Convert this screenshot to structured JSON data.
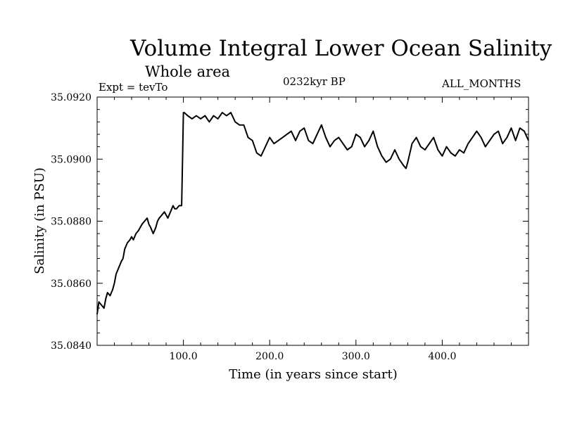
{
  "header": {
    "title": "Volume Integral Lower Ocean Salinity",
    "subtitle": "Whole area",
    "experiment": "Expt = tevTo",
    "period": "0232kyr BP",
    "months": "ALL_MONTHS"
  },
  "chart_data": {
    "type": "line",
    "xlabel": "Time (in years since start)",
    "ylabel": "Salinity (in PSU)",
    "xlim": [
      0,
      500
    ],
    "ylim": [
      35.084,
      35.092
    ],
    "x_major_ticks": [
      100,
      200,
      300,
      400
    ],
    "x_tick_labels": [
      "100.0",
      "200.0",
      "300.0",
      "400.0"
    ],
    "y_major_ticks": [
      35.084,
      35.086,
      35.088,
      35.09,
      35.092
    ],
    "y_tick_labels": [
      "35.0840",
      "35.0860",
      "35.0880",
      "35.0900",
      "35.0920"
    ],
    "grid": false,
    "line_color": "#000000",
    "series": [
      {
        "x": [
          0,
          2,
          5,
          8,
          10,
          12,
          15,
          18,
          20,
          22,
          25,
          28,
          30,
          32,
          35,
          38,
          40,
          42,
          45,
          48,
          50,
          52,
          55,
          58,
          60,
          62,
          65,
          68,
          70,
          72,
          75,
          78,
          80,
          82,
          85,
          88,
          90,
          92,
          95,
          98,
          99,
          100,
          101,
          105,
          110,
          115,
          120,
          125,
          130,
          135,
          140,
          145,
          150,
          155,
          160,
          165,
          170,
          175,
          180,
          185,
          190,
          195,
          200,
          205,
          210,
          215,
          220,
          225,
          230,
          235,
          240,
          245,
          250,
          255,
          260,
          265,
          270,
          275,
          280,
          285,
          290,
          295,
          300,
          305,
          310,
          315,
          320,
          325,
          330,
          335,
          340,
          345,
          350,
          355,
          358,
          360,
          365,
          370,
          375,
          380,
          385,
          390,
          395,
          400,
          405,
          410,
          415,
          420,
          425,
          430,
          435,
          440,
          445,
          450,
          455,
          460,
          465,
          470,
          475,
          480,
          485,
          490,
          495,
          500
        ],
        "y": [
          35.085,
          35.0854,
          35.0853,
          35.0852,
          35.0855,
          35.0857,
          35.0856,
          35.0858,
          35.086,
          35.0863,
          35.0865,
          35.0867,
          35.0868,
          35.0871,
          35.0873,
          35.0874,
          35.0875,
          35.0874,
          35.0876,
          35.0877,
          35.0878,
          35.0879,
          35.088,
          35.0881,
          35.0879,
          35.0878,
          35.0876,
          35.0878,
          35.088,
          35.0881,
          35.0882,
          35.0883,
          35.0882,
          35.0881,
          35.0883,
          35.0885,
          35.0884,
          35.0884,
          35.0885,
          35.0885,
          35.09,
          35.0915,
          35.0915,
          35.0914,
          35.0913,
          35.0914,
          35.0913,
          35.0914,
          35.0912,
          35.0914,
          35.0913,
          35.0915,
          35.0914,
          35.0915,
          35.0912,
          35.0911,
          35.0911,
          35.0907,
          35.0906,
          35.0902,
          35.0901,
          35.0904,
          35.0907,
          35.0905,
          35.0906,
          35.0907,
          35.0908,
          35.0909,
          35.0906,
          35.0909,
          35.091,
          35.0906,
          35.0905,
          35.0908,
          35.0911,
          35.0907,
          35.0904,
          35.0906,
          35.0907,
          35.0905,
          35.0903,
          35.0904,
          35.0908,
          35.0907,
          35.0904,
          35.0906,
          35.0909,
          35.0904,
          35.0901,
          35.0899,
          35.09,
          35.0903,
          35.09,
          35.0898,
          35.0897,
          35.0899,
          35.0905,
          35.0907,
          35.0904,
          35.0903,
          35.0905,
          35.0907,
          35.0903,
          35.0901,
          35.0904,
          35.0902,
          35.0901,
          35.0903,
          35.0902,
          35.0905,
          35.0907,
          35.0909,
          35.0907,
          35.0904,
          35.0906,
          35.0908,
          35.0909,
          35.0905,
          35.0907,
          35.091,
          35.0906,
          35.091,
          35.0909,
          35.0906
        ]
      }
    ]
  }
}
